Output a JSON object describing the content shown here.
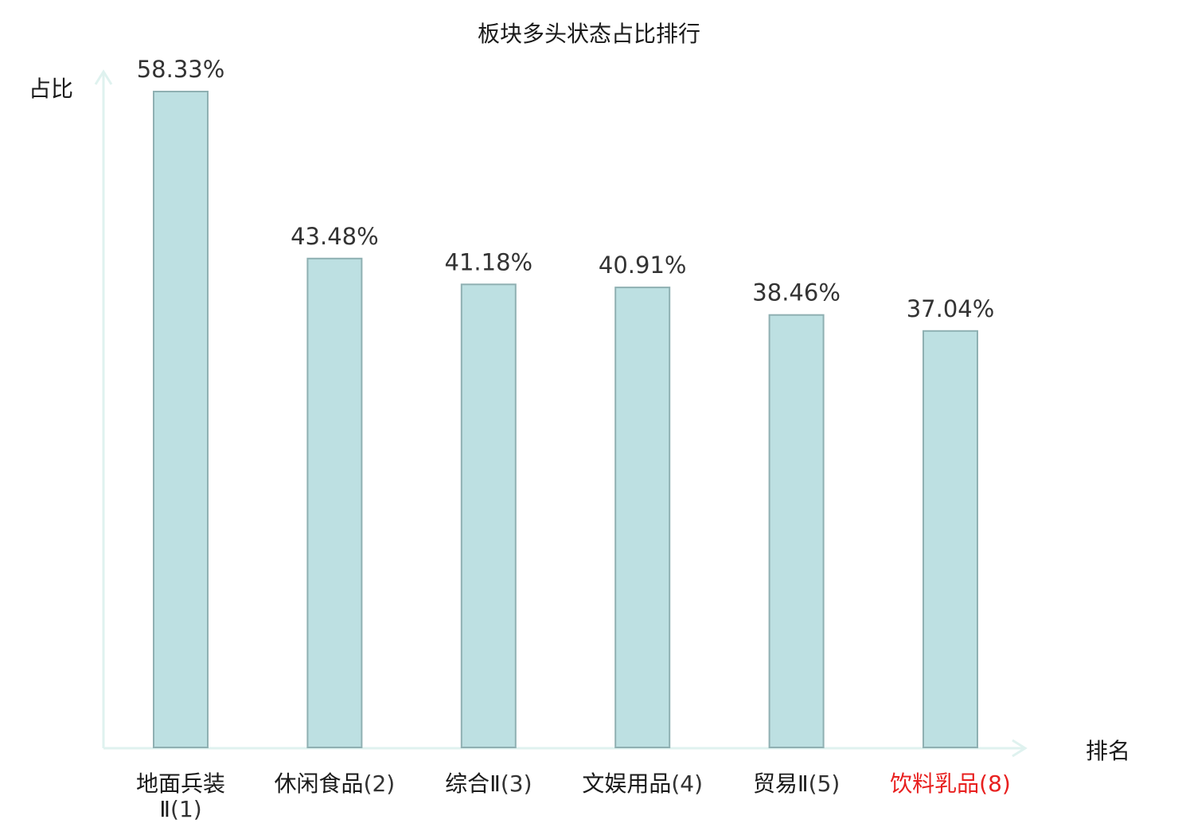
{
  "chart_data": {
    "type": "bar",
    "title": "板块多头状态占比排行",
    "ylabel": "占比",
    "xlabel": "排名",
    "unit": "%",
    "categories": [
      {
        "name": "地面兵装Ⅱ",
        "rank": "(1)"
      },
      {
        "name": "休闲食品",
        "rank": "(2)"
      },
      {
        "name": "综合Ⅱ",
        "rank": "(3)"
      },
      {
        "name": "文娱用品",
        "rank": "(4)"
      },
      {
        "name": "贸易Ⅱ",
        "rank": "(5)"
      },
      {
        "name": "饮料乳品",
        "rank": "(8)"
      }
    ],
    "values": [
      58.33,
      43.48,
      41.18,
      40.91,
      38.46,
      37.04
    ],
    "value_labels": [
      "58.33%",
      "43.48%",
      "41.18%",
      "40.91%",
      "38.46%",
      "37.04%"
    ],
    "highlight_index": 5,
    "ylim": [
      0,
      58.33
    ],
    "grid": false,
    "legend": "none"
  },
  "colors": {
    "bar_fill": "#bde0e2",
    "bar_stroke": "#8fb0b2",
    "axis": "#dff2ef",
    "text": "#1a1a1a",
    "value_label": "#333333",
    "highlight": "#e8201f"
  }
}
